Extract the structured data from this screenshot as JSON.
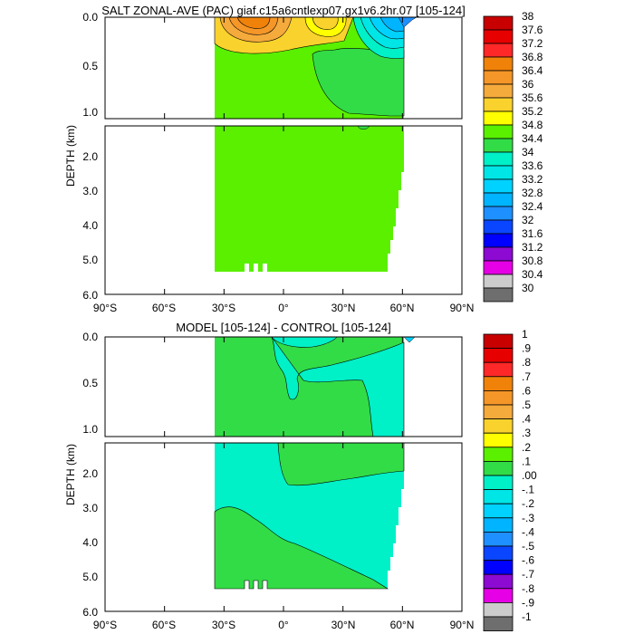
{
  "chart_data": [
    {
      "type": "heatmap",
      "title": "SALT ZONAL-AVE (PAC) giaf.c15a6cntlexp07.gx1v6.2hr.07 [105-124]",
      "ylabel": "DEPTH (km)",
      "x_ticks": [
        "90°S",
        "60°S",
        "30°S",
        "0°",
        "30°N",
        "60°N",
        "90°N"
      ],
      "y_ticks_upper": [
        "0.0",
        "0.5",
        "1.0"
      ],
      "y_ticks_lower": [
        "2.0",
        "3.0",
        "4.0",
        "5.0",
        "6.0"
      ],
      "xlim": [
        -90,
        90
      ],
      "ylim": [
        6.0,
        0.0
      ],
      "colorbar_labels": [
        "38",
        "37.6",
        "37.2",
        "36.8",
        "36.4",
        "36",
        "35.6",
        "35.2",
        "34.8",
        "34.4",
        "34",
        "33.6",
        "33.2",
        "32.8",
        "32.4",
        "32",
        "31.6",
        "31.2",
        "30.8",
        "30.4",
        "30"
      ],
      "colors": [
        "#c80000",
        "#e60000",
        "#ff2828",
        "#f0820a",
        "#f59628",
        "#f5aa3c",
        "#fad22d",
        "#ffff00",
        "#5af000",
        "#32dc46",
        "#00f0c8",
        "#00e6e6",
        "#00d2ff",
        "#00b4ff",
        "#1e90ff",
        "#0a46ff",
        "#0000ff",
        "#8c0ad2",
        "#e600e6",
        "#cccccc",
        "#6e6e6e"
      ],
      "data_extent": {
        "lat": [
          -33,
          62
        ],
        "depth_max_km": 5.4
      },
      "dominant_range": "34.4-34.8"
    },
    {
      "type": "heatmap",
      "title": "MODEL [105-124] - CONTROL [105-124]",
      "ylabel": "DEPTH (km)",
      "x_ticks": [
        "90°S",
        "60°S",
        "30°S",
        "0°",
        "30°N",
        "60°N",
        "90°N"
      ],
      "y_ticks_upper": [
        "0.0",
        "0.5",
        "1.0"
      ],
      "y_ticks_lower": [
        "2.0",
        "3.0",
        "4.0",
        "5.0",
        "6.0"
      ],
      "xlim": [
        -90,
        90
      ],
      "ylim": [
        6.0,
        0.0
      ],
      "colorbar_labels": [
        "1",
        ".9",
        ".8",
        ".7",
        ".6",
        ".5",
        ".4",
        ".3",
        ".2",
        ".1",
        ".00",
        "-.1",
        "-.2",
        "-.3",
        "-.4",
        "-.5",
        "-.6",
        "-.7",
        "-.8",
        "-.9",
        "-1"
      ],
      "colors": [
        "#c80000",
        "#e60000",
        "#ff2828",
        "#f0820a",
        "#f59628",
        "#f5aa3c",
        "#fad22d",
        "#ffff00",
        "#5af000",
        "#32dc46",
        "#00f0c8",
        "#00e6e6",
        "#00d2ff",
        "#00b4ff",
        "#1e90ff",
        "#0a46ff",
        "#0000ff",
        "#8c0ad2",
        "#e600e6",
        "#cccccc",
        "#6e6e6e"
      ],
      "data_extent": {
        "lat": [
          -33,
          62
        ],
        "depth_max_km": 5.4
      },
      "dominant_range": "-0.1-0.1"
    }
  ]
}
